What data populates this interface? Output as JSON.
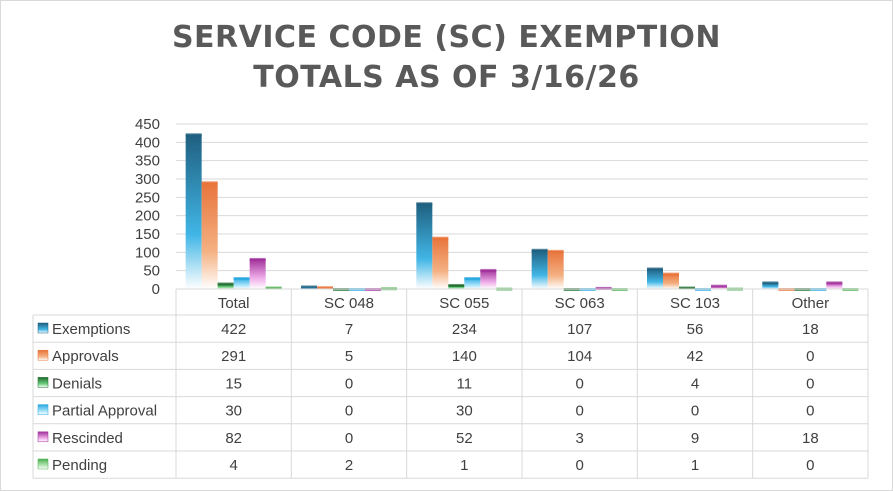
{
  "chart_data": {
    "type": "bar",
    "title": [
      "SERVICE CODE (SC) EXEMPTION",
      "TOTALS AS OF  3/16/26"
    ],
    "categories": [
      "Total",
      "SC 048",
      "SC 055",
      "SC 063",
      "SC 103",
      "Other"
    ],
    "series": [
      {
        "name": "Exemptions",
        "values": [
          422,
          7,
          234,
          107,
          56,
          18
        ],
        "color": "#1f5f7f",
        "light": "#41b6e6"
      },
      {
        "name": "Approvals",
        "values": [
          291,
          5,
          140,
          104,
          42,
          0
        ],
        "color": "#e8743b",
        "light": "#f4b183"
      },
      {
        "name": "Denials",
        "values": [
          15,
          0,
          11,
          0,
          4,
          0
        ],
        "color": "#1e6b2e",
        "light": "#6fcf7f"
      },
      {
        "name": "Partial Approval",
        "values": [
          30,
          0,
          30,
          0,
          0,
          0
        ],
        "color": "#2aa8e0",
        "light": "#a9e4fb"
      },
      {
        "name": "Rescinded",
        "values": [
          82,
          0,
          52,
          3,
          9,
          18
        ],
        "color": "#a0309a",
        "light": "#f0b0ea"
      },
      {
        "name": "Pending",
        "values": [
          4,
          2,
          1,
          0,
          1,
          0
        ],
        "color": "#4caf50",
        "light": "#b8e6b8"
      }
    ],
    "yticks": [
      0,
      50,
      100,
      150,
      200,
      250,
      300,
      350,
      400,
      450
    ],
    "ylim": [
      0,
      450
    ],
    "grid": true,
    "legend": "data-table"
  }
}
